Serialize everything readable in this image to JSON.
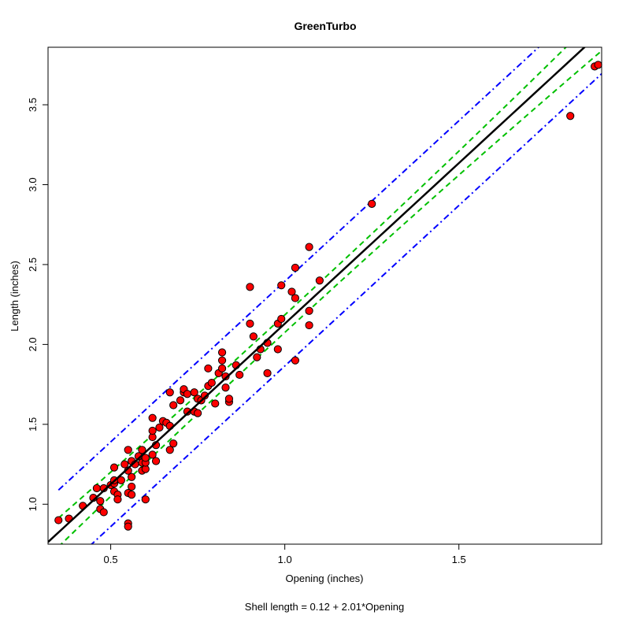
{
  "chart_data": {
    "type": "scatter",
    "title": "GreenTurbo",
    "xlabel": "Opening (inches)",
    "ylabel": "Length (inches)",
    "caption": "Shell length = 0.12 + 2.01*Opening",
    "xlim": [
      0.32,
      1.91
    ],
    "ylim": [
      0.75,
      3.86
    ],
    "x_ticks": [
      0.5,
      1.0,
      1.5
    ],
    "x_tick_labels": [
      "0.5",
      "1.0",
      "1.5"
    ],
    "y_ticks": [
      1.0,
      1.5,
      2.0,
      2.5,
      3.0,
      3.5
    ],
    "y_tick_labels": [
      "1.0",
      "1.5",
      "2.0",
      "2.5",
      "3.0",
      "3.5"
    ],
    "grid": false,
    "fit": {
      "intercept": 0.12,
      "slope": 2.01,
      "color": "#000000"
    },
    "confidence_band": {
      "offsets": [
        [
          0.35,
          0.09
        ],
        [
          1.0,
          0.055
        ],
        [
          1.9,
          0.12
        ]
      ],
      "color": "#00c000"
    },
    "prediction_band": {
      "offset": 0.265,
      "x_start": 0.35,
      "color": "#0000ff"
    },
    "point_color": "#ff0000",
    "points": [
      [
        0.35,
        0.9
      ],
      [
        0.38,
        0.91
      ],
      [
        0.42,
        0.99
      ],
      [
        0.45,
        1.04
      ],
      [
        0.46,
        1.1
      ],
      [
        0.47,
        1.02
      ],
      [
        0.47,
        0.97
      ],
      [
        0.48,
        0.95
      ],
      [
        0.48,
        1.1
      ],
      [
        0.5,
        1.12
      ],
      [
        0.51,
        1.08
      ],
      [
        0.51,
        1.13
      ],
      [
        0.51,
        1.23
      ],
      [
        0.51,
        1.15
      ],
      [
        0.52,
        1.06
      ],
      [
        0.52,
        1.03
      ],
      [
        0.53,
        1.15
      ],
      [
        0.54,
        1.25
      ],
      [
        0.55,
        1.07
      ],
      [
        0.55,
        1.21
      ],
      [
        0.55,
        1.34
      ],
      [
        0.55,
        0.88
      ],
      [
        0.55,
        0.86
      ],
      [
        0.56,
        1.06
      ],
      [
        0.56,
        1.11
      ],
      [
        0.56,
        1.17
      ],
      [
        0.56,
        1.27
      ],
      [
        0.57,
        1.25
      ],
      [
        0.58,
        1.3
      ],
      [
        0.59,
        1.21
      ],
      [
        0.59,
        1.26
      ],
      [
        0.59,
        1.34
      ],
      [
        0.6,
        1.22
      ],
      [
        0.6,
        1.26
      ],
      [
        0.6,
        1.29
      ],
      [
        0.6,
        1.03
      ],
      [
        0.62,
        1.42
      ],
      [
        0.62,
        1.46
      ],
      [
        0.62,
        1.54
      ],
      [
        0.62,
        1.31
      ],
      [
        0.63,
        1.27
      ],
      [
        0.63,
        1.37
      ],
      [
        0.64,
        1.48
      ],
      [
        0.65,
        1.52
      ],
      [
        0.66,
        1.51
      ],
      [
        0.67,
        1.7
      ],
      [
        0.67,
        1.49
      ],
      [
        0.67,
        1.34
      ],
      [
        0.68,
        1.62
      ],
      [
        0.68,
        1.38
      ],
      [
        0.7,
        1.65
      ],
      [
        0.71,
        1.7
      ],
      [
        0.71,
        1.72
      ],
      [
        0.72,
        1.69
      ],
      [
        0.72,
        1.58
      ],
      [
        0.74,
        1.7
      ],
      [
        0.74,
        1.58
      ],
      [
        0.75,
        1.57
      ],
      [
        0.75,
        1.66
      ],
      [
        0.76,
        1.65
      ],
      [
        0.77,
        1.68
      ],
      [
        0.78,
        1.85
      ],
      [
        0.78,
        1.74
      ],
      [
        0.79,
        1.76
      ],
      [
        0.8,
        1.63
      ],
      [
        0.81,
        1.82
      ],
      [
        0.82,
        1.95
      ],
      [
        0.82,
        1.85
      ],
      [
        0.82,
        1.9
      ],
      [
        0.83,
        1.8
      ],
      [
        0.83,
        1.73
      ],
      [
        0.84,
        1.64
      ],
      [
        0.84,
        1.66
      ],
      [
        0.86,
        1.87
      ],
      [
        0.87,
        1.81
      ],
      [
        0.9,
        2.13
      ],
      [
        0.9,
        2.36
      ],
      [
        0.91,
        2.05
      ],
      [
        0.92,
        1.92
      ],
      [
        0.93,
        1.97
      ],
      [
        0.95,
        2.01
      ],
      [
        0.95,
        1.82
      ],
      [
        0.98,
        2.13
      ],
      [
        0.98,
        1.97
      ],
      [
        0.99,
        2.37
      ],
      [
        0.99,
        2.16
      ],
      [
        1.02,
        2.33
      ],
      [
        1.03,
        2.29
      ],
      [
        1.03,
        2.48
      ],
      [
        1.03,
        1.9
      ],
      [
        1.07,
        2.61
      ],
      [
        1.07,
        2.21
      ],
      [
        1.07,
        2.12
      ],
      [
        1.1,
        2.4
      ],
      [
        1.25,
        2.88
      ],
      [
        1.82,
        3.43
      ],
      [
        1.89,
        3.74
      ],
      [
        1.9,
        3.75
      ]
    ]
  }
}
